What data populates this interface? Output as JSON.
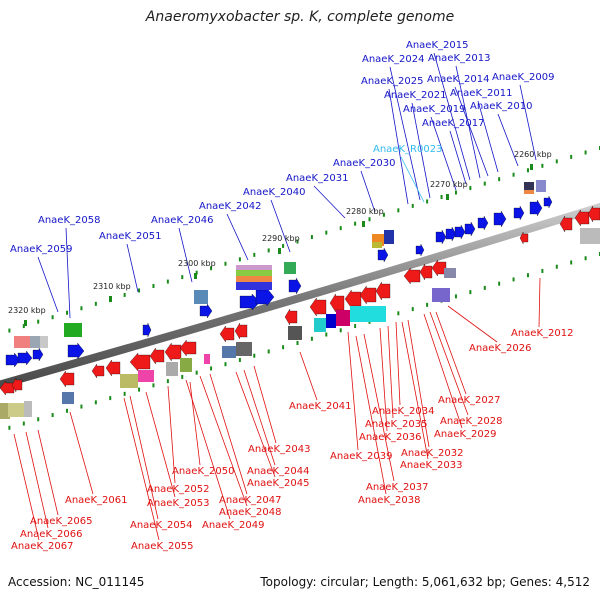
{
  "title": "Anaeromyxobacter sp. K, complete genome",
  "footer": {
    "accession": "Accession: NC_011145",
    "topology": "Topology: circular; Length: 5,061,632 bp; Genes: 4,512"
  },
  "colors": {
    "forward_label": "#1515c8",
    "reverse_label": "#e01010",
    "rna_label": "#33bbee",
    "forward_gene": "#0a14e6",
    "reverse_gene": "#ee1a1a",
    "backbone": "#777777",
    "tick": "#1a8a1a"
  },
  "kbp_ticks": [
    {
      "label": "2320 kbp"
    },
    {
      "label": "2310 kbp"
    },
    {
      "label": "2300 kbp"
    },
    {
      "label": "2290 kbp"
    },
    {
      "label": "2280 kbp"
    },
    {
      "label": "2270 kbp"
    },
    {
      "label": "2260 kbp"
    }
  ],
  "forward_labels": [
    "AnaeK_2015",
    "AnaeK_2013",
    "AnaeK_2024",
    "AnaeK_2014",
    "AnaeK_2009",
    "AnaeK_2025",
    "AnaeK_2021",
    "AnaeK_2011",
    "AnaeK_2019",
    "AnaeK_2010",
    "AnaeK_2017",
    "AnaeK_2030",
    "AnaeK_2031",
    "AnaeK_2040",
    "AnaeK_2042",
    "AnaeK_2058",
    "AnaeK_2046",
    "AnaeK_2051",
    "AnaeK_2059"
  ],
  "rna_labels": [
    "AnaeK_R0023"
  ],
  "reverse_labels": [
    "AnaeK_2012",
    "AnaeK_2026",
    "AnaeK_2027",
    "AnaeK_2028",
    "AnaeK_2029",
    "AnaeK_2041",
    "AnaeK_2034",
    "AnaeK_2035",
    "AnaeK_2036",
    "AnaeK_2032",
    "AnaeK_2039",
    "AnaeK_2033",
    "AnaeK_2043",
    "AnaeK_2044",
    "AnaeK_2045",
    "AnaeK_2050",
    "AnaeK_2037",
    "AnaeK_2038",
    "AnaeK_2052",
    "AnaeK_2047",
    "AnaeK_2053",
    "AnaeK_2048",
    "AnaeK_2061",
    "AnaeK_2049",
    "AnaeK_2054",
    "AnaeK_2055",
    "AnaeK_2065",
    "AnaeK_2066",
    "AnaeK_2067"
  ]
}
